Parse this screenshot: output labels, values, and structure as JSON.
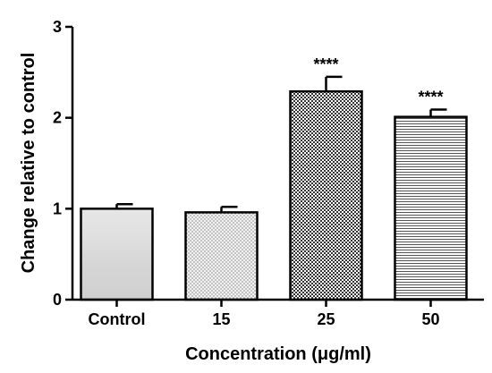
{
  "chart_data": {
    "type": "bar",
    "categories": [
      "Control",
      "15",
      "25",
      "50"
    ],
    "values": [
      1.0,
      0.96,
      2.29,
      2.01
    ],
    "errors": [
      0.05,
      0.06,
      0.16,
      0.08
    ],
    "significance": [
      "",
      "",
      "****",
      "****"
    ],
    "xlabel": "Concentration (μg/ml)",
    "ylabel": "Change relative to control",
    "ylim": [
      0,
      3
    ],
    "yticks": [
      "0",
      "1",
      "2",
      "3"
    ],
    "grid": false,
    "bar_fills": [
      "solid-light-gray",
      "fine-dots",
      "checkerboard",
      "horizontal-stripes"
    ]
  }
}
